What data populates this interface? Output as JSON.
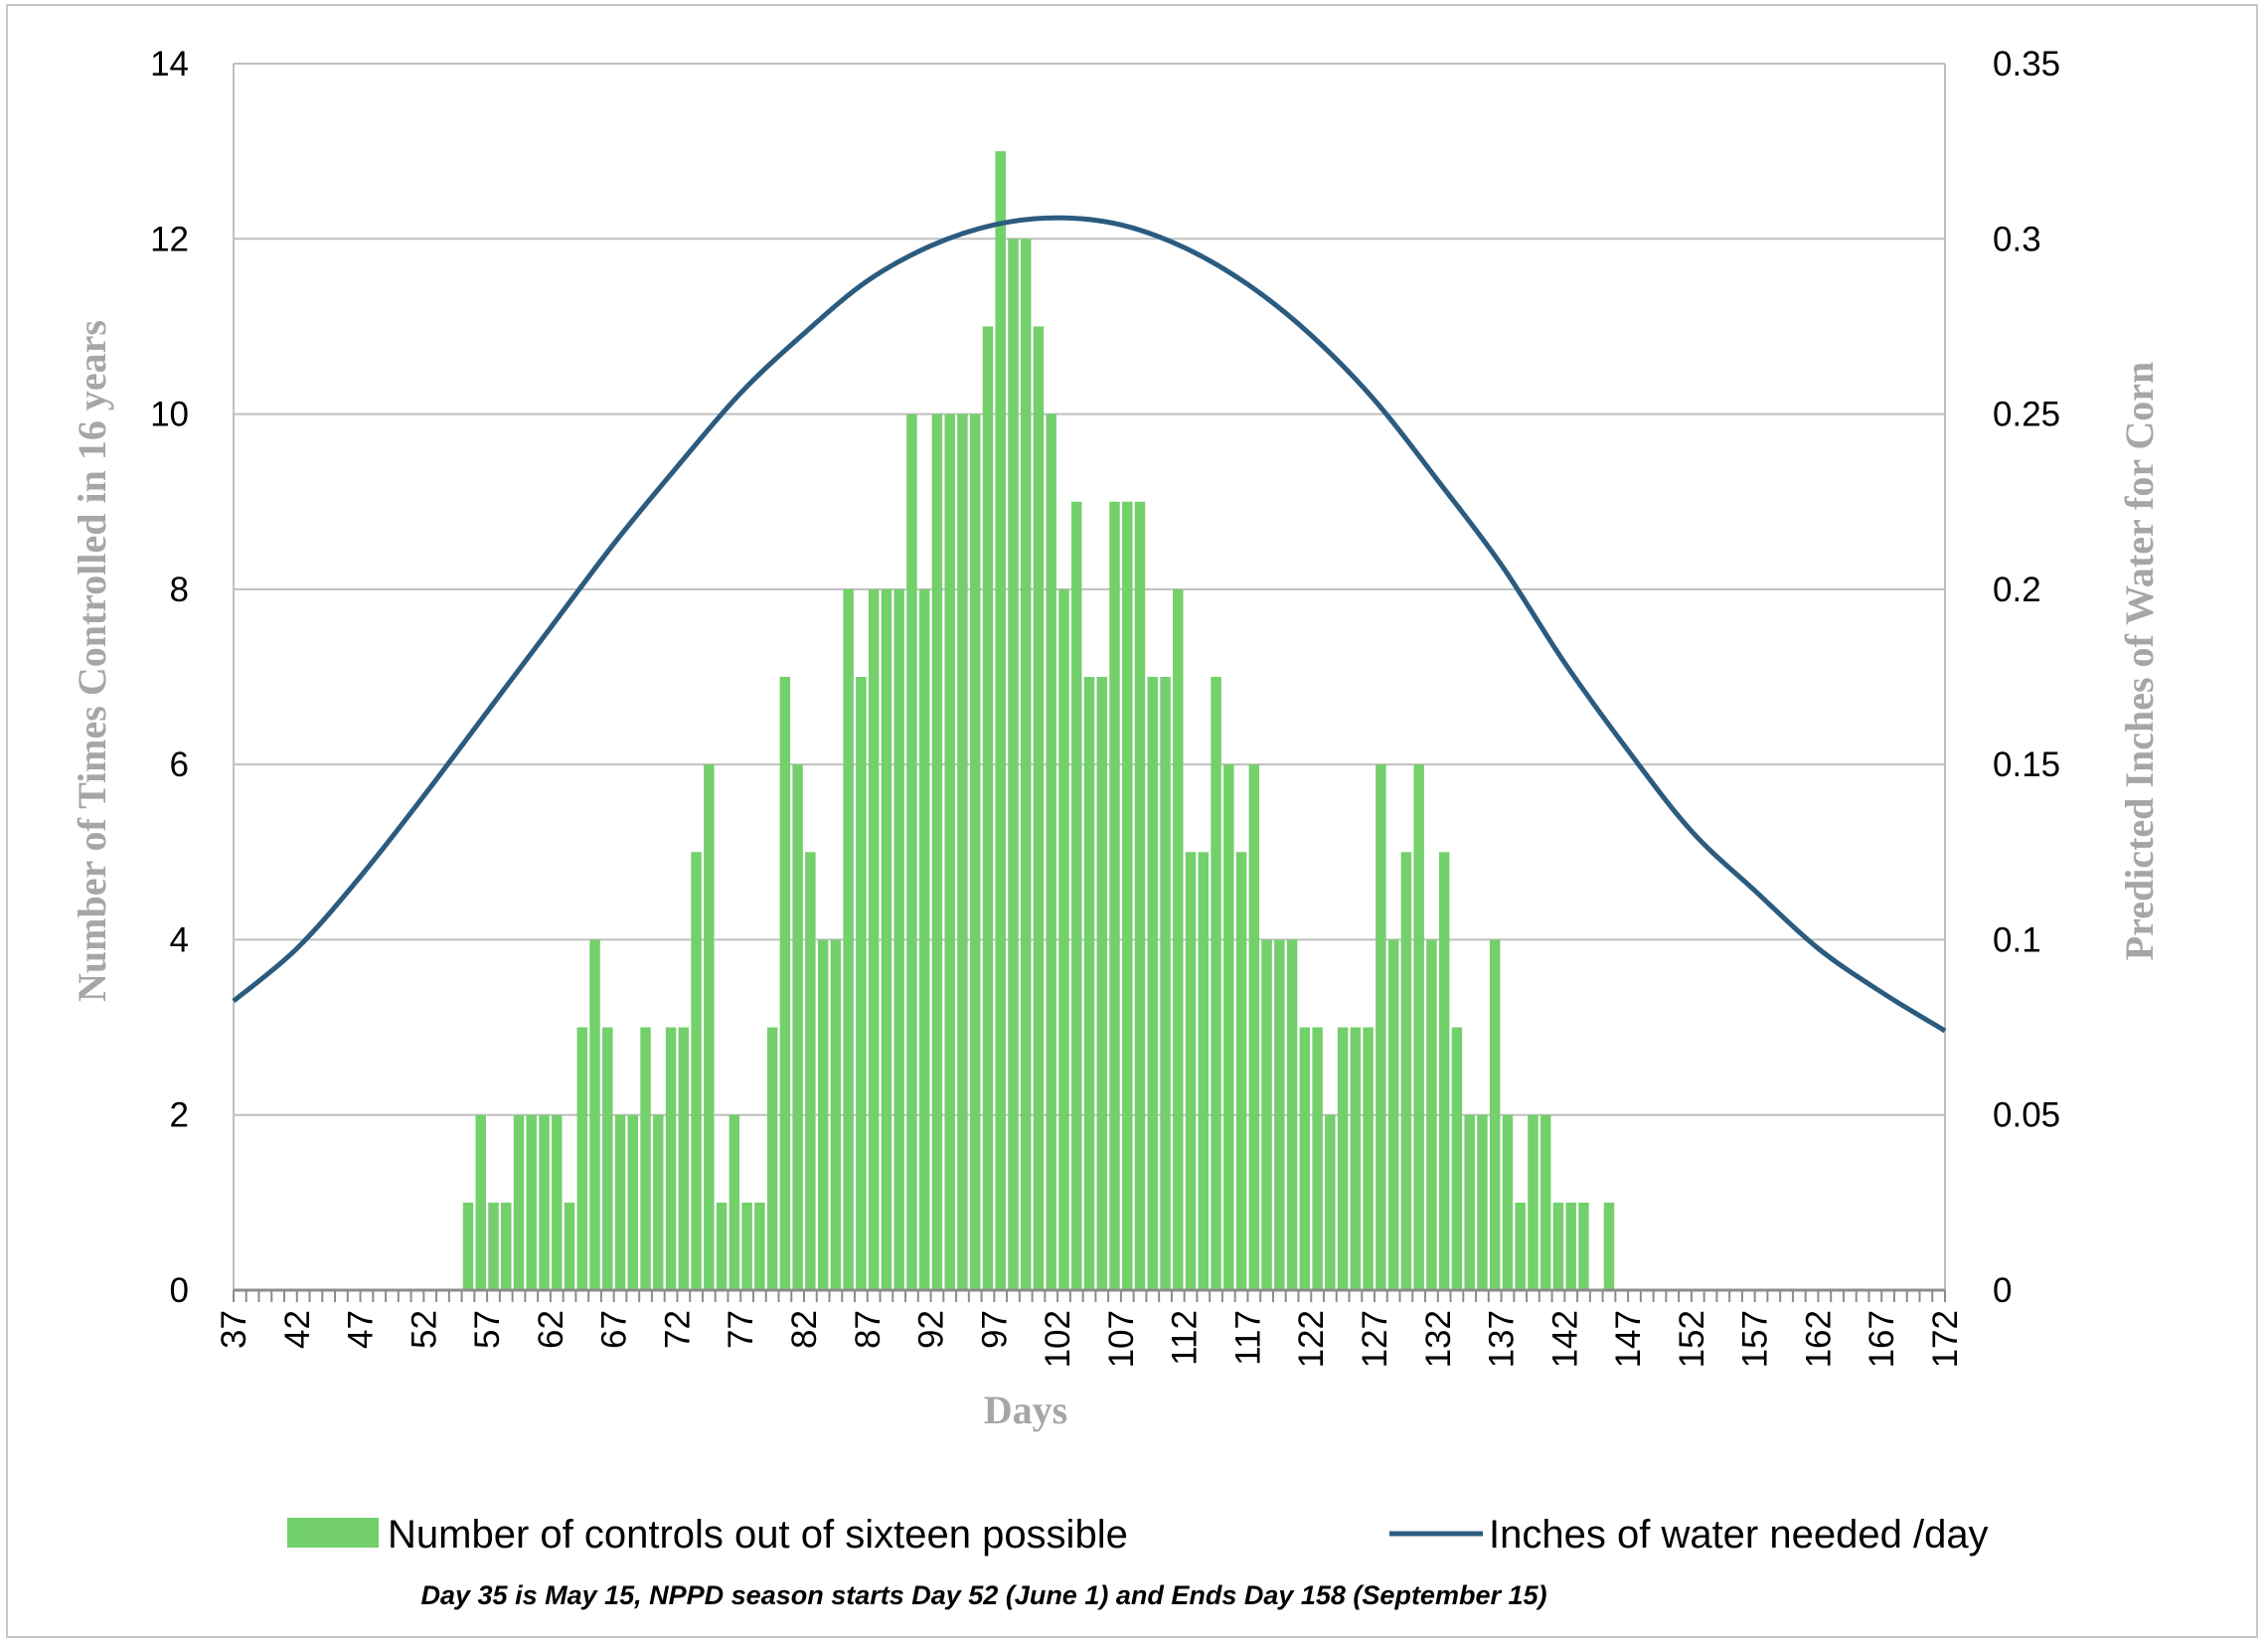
{
  "chart_data": {
    "type": "bar+line",
    "title": "",
    "xlabel": "Days",
    "ylabel_left": "Number of Times Controlled in 16 years",
    "ylabel_right": "Predicted Inches of Water for Corn",
    "x_range": [
      37,
      172
    ],
    "x_tick_labels": [
      "37",
      "42",
      "47",
      "52",
      "57",
      "62",
      "67",
      "72",
      "77",
      "82",
      "87",
      "92",
      "97",
      "102",
      "107",
      "112",
      "117",
      "122",
      "127",
      "132",
      "137",
      "142",
      "147",
      "152",
      "157",
      "162",
      "167",
      "172"
    ],
    "ylim_left": [
      0,
      14
    ],
    "y_ticks_left": [
      "0",
      "2",
      "4",
      "6",
      "8",
      "10",
      "12",
      "14"
    ],
    "ylim_right": [
      0,
      0.35
    ],
    "y_ticks_right": [
      "0",
      "0.05",
      "0.1",
      "0.15",
      "0.2",
      "0.25",
      "0.3",
      "0.35"
    ],
    "grid": true,
    "legend_position": "bottom",
    "series": [
      {
        "name": "Number of controls out of sixteen possible",
        "type": "bar",
        "axis": "left",
        "color": "#73d06b",
        "x": [
          56,
          57,
          58,
          59,
          60,
          61,
          62,
          63,
          64,
          65,
          66,
          67,
          68,
          69,
          70,
          71,
          72,
          73,
          74,
          75,
          76,
          77,
          78,
          79,
          80,
          81,
          82,
          83,
          84,
          85,
          86,
          87,
          88,
          89,
          90,
          91,
          92,
          93,
          94,
          95,
          96,
          97,
          98,
          99,
          100,
          101,
          102,
          103,
          104,
          105,
          106,
          107,
          108,
          109,
          110,
          111,
          112,
          113,
          114,
          115,
          116,
          117,
          118,
          119,
          120,
          121,
          122,
          123,
          124,
          125,
          126,
          127,
          128,
          129,
          130,
          131,
          132,
          133,
          134,
          135,
          136,
          137,
          138,
          139,
          140,
          141,
          142,
          143,
          144,
          145,
          146
        ],
        "values": [
          1,
          2,
          1,
          1,
          2,
          2,
          2,
          2,
          1,
          3,
          4,
          3,
          2,
          2,
          3,
          2,
          3,
          3,
          5,
          6,
          1,
          2,
          1,
          1,
          3,
          7,
          6,
          5,
          4,
          4,
          8,
          7,
          8,
          8,
          8,
          10,
          8,
          10,
          10,
          10,
          10,
          11,
          13,
          12,
          12,
          11,
          10,
          8,
          9,
          7,
          7,
          9,
          9,
          9,
          7,
          7,
          8,
          5,
          5,
          7,
          6,
          5,
          6,
          4,
          4,
          4,
          3,
          3,
          2,
          3,
          3,
          3,
          6,
          4,
          5,
          6,
          4,
          5,
          3,
          2,
          2,
          4,
          2,
          1,
          2,
          2,
          1,
          1,
          1,
          0,
          1
        ]
      },
      {
        "name": "Inches of water needed /day",
        "type": "line",
        "axis": "right",
        "color": "#2b5b7f",
        "x": [
          37,
          42,
          47,
          52,
          57,
          62,
          67,
          72,
          77,
          82,
          87,
          92,
          97,
          102,
          107,
          112,
          117,
          122,
          127,
          132,
          137,
          142,
          147,
          152,
          157,
          162,
          167,
          172
        ],
        "values": [
          0.0825,
          0.0975,
          0.118,
          0.141,
          0.165,
          0.189,
          0.213,
          0.235,
          0.256,
          0.273,
          0.288,
          0.298,
          0.304,
          0.306,
          0.304,
          0.2975,
          0.287,
          0.2725,
          0.254,
          0.231,
          0.207,
          0.179,
          0.154,
          0.131,
          0.114,
          0.0975,
          0.085,
          0.074
        ]
      }
    ],
    "footnote": "Day 35 is May 15, NPPD season starts Day 52 (June 1) and Ends Day 158 (September 15)"
  }
}
